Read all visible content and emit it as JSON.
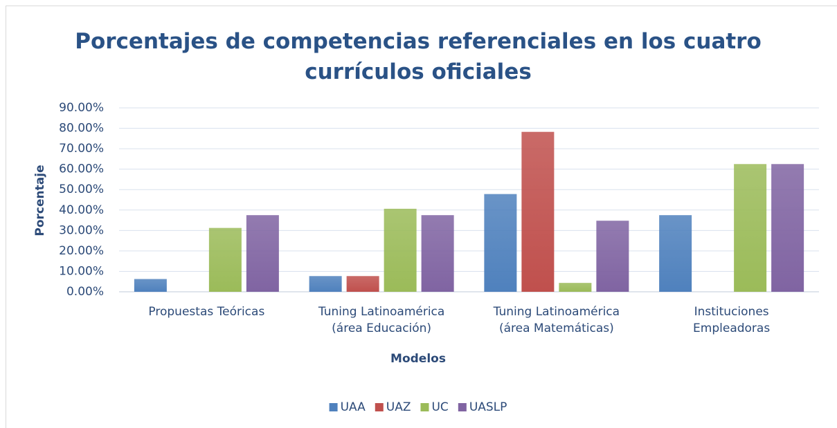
{
  "chart_data": {
    "type": "bar",
    "title": "Porcentajes de competencias referenciales en los cuatro currículos oficiales",
    "x_label": "Modelos",
    "y_label": "Porcentaje",
    "categories": [
      "Propuestas Teóricas",
      "Tuning Latinoamérica (área Educación)",
      "Tuning Latinoamérica (área Matemáticas)",
      "Instituciones Empleadoras"
    ],
    "series": [
      {
        "name": "UAA",
        "color": "#4f81bd",
        "values": [
          6.25,
          7.69,
          47.83,
          37.5
        ]
      },
      {
        "name": "UAZ",
        "color": "#c0504d",
        "values": [
          0,
          7.69,
          78.26,
          0
        ]
      },
      {
        "name": "UC",
        "color": "#9bbb59",
        "values": [
          31.25,
          40.63,
          4.35,
          62.5
        ]
      },
      {
        "name": "UASLP",
        "color": "#8064a2",
        "values": [
          37.5,
          37.5,
          34.78,
          62.5
        ]
      }
    ],
    "ylim": [
      0,
      90
    ],
    "yticks": [
      {
        "value": 0,
        "label": "0.00%"
      },
      {
        "value": 10,
        "label": "10.00%"
      },
      {
        "value": 20,
        "label": "20.00%"
      },
      {
        "value": 30,
        "label": "30.00%"
      },
      {
        "value": 40,
        "label": "40.00%"
      },
      {
        "value": 50,
        "label": "50.00%"
      },
      {
        "value": 60,
        "label": "60.00%"
      },
      {
        "value": 70,
        "label": "70.00%"
      },
      {
        "value": 80,
        "label": "80.00%"
      },
      {
        "value": 90,
        "label": "90.00%"
      }
    ],
    "grid": true,
    "legend": "bottom"
  }
}
